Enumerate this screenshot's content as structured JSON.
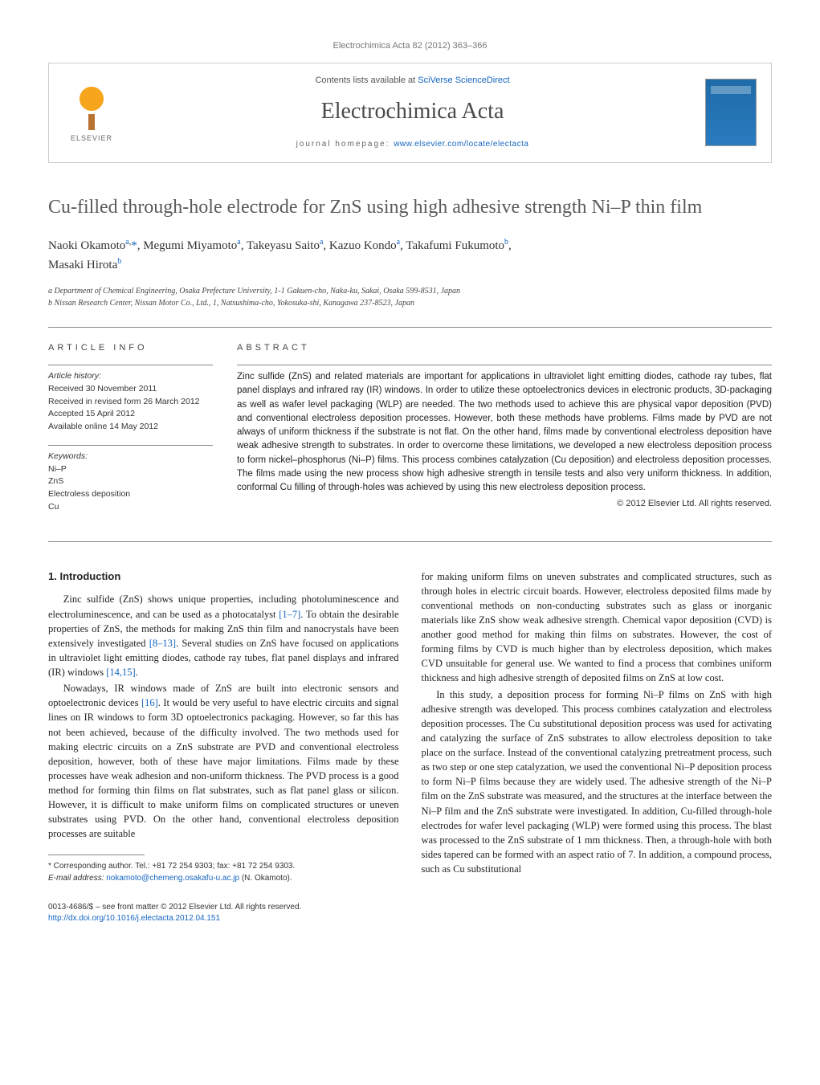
{
  "header": {
    "reference_line": "Electrochimica Acta 82 (2012) 363–366",
    "contents_prefix": "Contents lists available at ",
    "contents_link": "SciVerse ScienceDirect",
    "journal_title": "Electrochimica Acta",
    "homepage_prefix": "journal homepage: ",
    "homepage_link": "www.elsevier.com/locate/electacta",
    "publisher_name": "ELSEVIER"
  },
  "article": {
    "title": "Cu-filled through-hole electrode for ZnS using high adhesive strength Ni–P thin film",
    "authors_html": "Naoki Okamoto<sup>a,</sup>*, Megumi Miyamoto<sup>a</sup>, Takeyasu Saito<sup>a</sup>, Kazuo Kondo<sup>a</sup>, Takafumi Fukumoto<sup>b</sup>, Masaki Hirota<sup>b</sup>",
    "affiliations": {
      "a": "a Department of Chemical Engineering, Osaka Prefecture University, 1-1 Gakuen-cho, Naka-ku, Sakai, Osaka 599-8531, Japan",
      "b": "b Nissan Research Center, Nissan Motor Co., Ltd., 1, Natsushima-cho, Yokosuka-shi, Kanagawa 237-8523, Japan"
    }
  },
  "info": {
    "section_label": "article info",
    "history_label": "Article history:",
    "received": "Received 30 November 2011",
    "revised": "Received in revised form 26 March 2012",
    "accepted": "Accepted 15 April 2012",
    "online": "Available online 14 May 2012",
    "keywords_label": "Keywords:",
    "keywords": [
      "Ni–P",
      "ZnS",
      "Electroless deposition",
      "Cu"
    ]
  },
  "abstract": {
    "section_label": "abstract",
    "text": "Zinc sulfide (ZnS) and related materials are important for applications in ultraviolet light emitting diodes, cathode ray tubes, flat panel displays and infrared ray (IR) windows. In order to utilize these optoelectronics devices in electronic products, 3D-packaging as well as wafer level packaging (WLP) are needed. The two methods used to achieve this are physical vapor deposition (PVD) and conventional electroless deposition processes. However, both these methods have problems. Films made by PVD are not always of uniform thickness if the substrate is not flat. On the other hand, films made by conventional electroless deposition have weak adhesive strength to substrates. In order to overcome these limitations, we developed a new electroless deposition process to form nickel–phosphorus (Ni–P) films. This process combines catalyzation (Cu deposition) and electroless deposition processes. The films made using the new process show high adhesive strength in tensile tests and also very uniform thickness. In addition, conformal Cu filling of through-holes was achieved by using this new electroless deposition process.",
    "copyright": "© 2012 Elsevier Ltd. All rights reserved."
  },
  "body": {
    "intro_heading": "1.  Introduction",
    "p1": "Zinc sulfide (ZnS) shows unique properties, including photoluminescence and electroluminescence, and can be used as a photocatalyst [1–7]. To obtain the desirable properties of ZnS, the methods for making ZnS thin film and nanocrystals have been extensively investigated [8–13]. Several studies on ZnS have focused on applications in ultraviolet light emitting diodes, cathode ray tubes, flat panel displays and infrared (IR) windows [14,15].",
    "p2": "Nowadays, IR windows made of ZnS are built into electronic sensors and optoelectronic devices [16]. It would be very useful to have electric circuits and signal lines on IR windows to form 3D optoelectronics packaging. However, so far this has not been achieved, because of the difficulty involved. The two methods used for making electric circuits on a ZnS substrate are PVD and conventional electroless deposition, however, both of these have major limitations. Films made by these processes have weak adhesion and non-uniform thickness. The PVD process is a good method for forming thin films on flat substrates, such as flat panel glass or silicon. However, it is difficult to make uniform films on complicated structures or uneven substrates using PVD. On the other hand, conventional electroless deposition processes are suitable",
    "p3": "for making uniform films on uneven substrates and complicated structures, such as through holes in electric circuit boards. However, electroless deposited films made by conventional methods on non-conducting substrates such as glass or inorganic materials like ZnS show weak adhesive strength. Chemical vapor deposition (CVD) is another good method for making thin films on substrates. However, the cost of forming films by CVD is much higher than by electroless deposition, which makes CVD unsuitable for general use. We wanted to find a process that combines uniform thickness and high adhesive strength of deposited films on ZnS at low cost.",
    "p4": "In this study, a deposition process for forming Ni–P films on ZnS with high adhesive strength was developed. This process combines catalyzation and electroless deposition processes. The Cu substitutional deposition process was used for activating and catalyzing the surface of ZnS substrates to allow electroless deposition to take place on the surface. Instead of the conventional catalyzing pretreatment process, such as two step or one step catalyzation, we used the conventional Ni–P deposition process to form Ni–P films because they are widely used. The adhesive strength of the Ni–P film on the ZnS substrate was measured, and the structures at the interface between the Ni–P film and the ZnS substrate were investigated. In addition, Cu-filled through-hole electrodes for wafer level packaging (WLP) were formed using this process. The blast was processed to the ZnS substrate of 1 mm thickness. Then, a through-hole with both sides tapered can be formed with an aspect ratio of 7. In addition, a compound process, such as Cu substitutional",
    "refs": {
      "r1_7": "[1–7]",
      "r8_13": "[8–13]",
      "r14_15": "[14,15]",
      "r16": "[16]"
    }
  },
  "footnote": {
    "corr": "* Corresponding author. Tel.: +81 72 254 9303; fax: +81 72 254 9303.",
    "email_label": "E-mail address: ",
    "email": "nokamoto@chemeng.osakafu-u.ac.jp",
    "email_suffix": " (N. Okamoto)."
  },
  "footer": {
    "issn": "0013-4686/$ – see front matter © 2012 Elsevier Ltd. All rights reserved.",
    "doi": "http://dx.doi.org/10.1016/j.electacta.2012.04.151"
  },
  "colors": {
    "link": "#1565c0",
    "text": "#333333",
    "heading": "#5a5a5a",
    "rule": "#888888",
    "cover_bg": "#2a7bc0"
  }
}
